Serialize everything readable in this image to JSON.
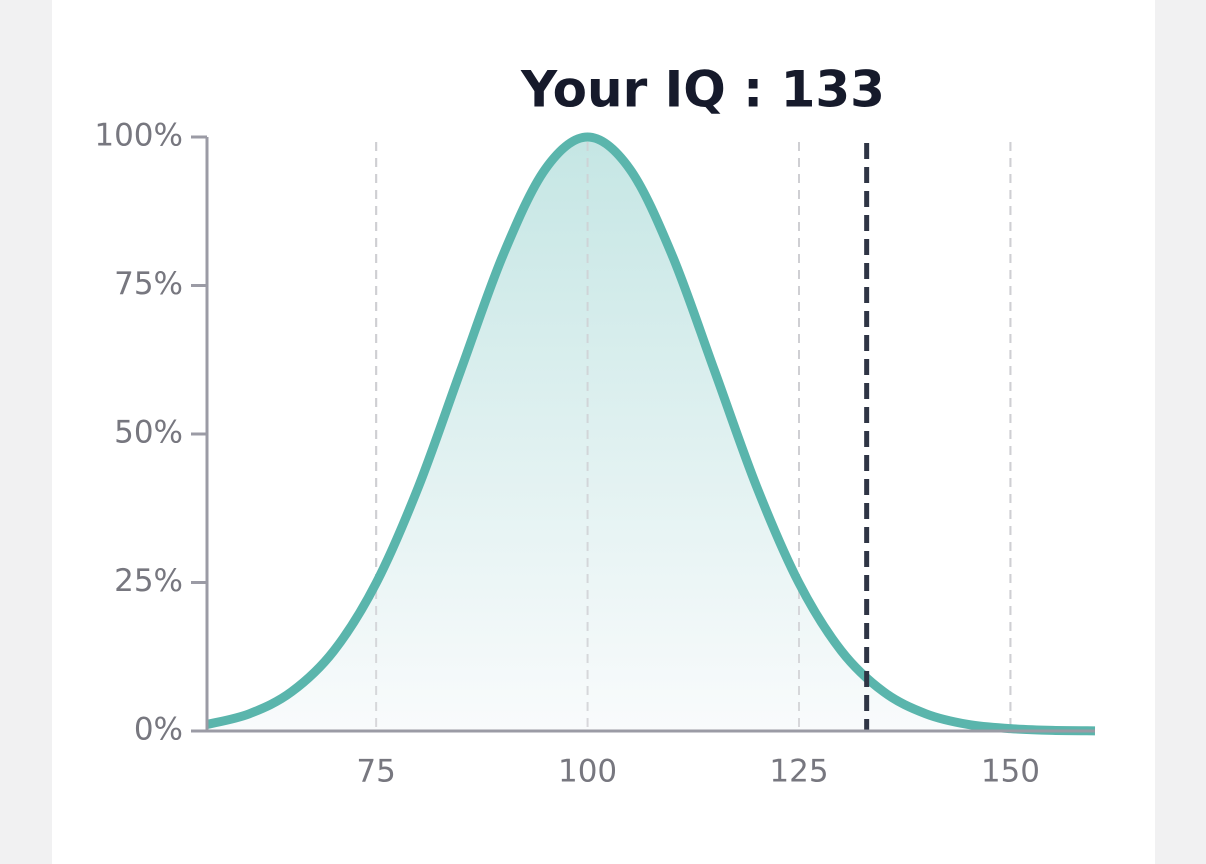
{
  "chart_data": {
    "type": "line",
    "title": "Your IQ : 133",
    "x": [
      55,
      60,
      65,
      70,
      75,
      80,
      85,
      90,
      95,
      100,
      105,
      110,
      115,
      120,
      125,
      130,
      135,
      140,
      145,
      150,
      155,
      160
    ],
    "series": [
      {
        "color": "#5ab5ac",
        "values": [
          1.1,
          2.9,
          6.6,
          13.5,
          24.9,
          41.1,
          60.7,
          80.1,
          94.6,
          100,
          94.6,
          80.1,
          60.7,
          41.1,
          24.9,
          13.5,
          6.6,
          2.9,
          1.1,
          0.4,
          0.1,
          0.03
        ]
      }
    ],
    "marker_x": 133,
    "marker_color": "#2f3545",
    "xlim": [
      55,
      160
    ],
    "ylim": [
      0,
      100
    ],
    "xticks": [
      75,
      100,
      125,
      150
    ],
    "yticks": [
      {
        "value": 0,
        "label": "0%"
      },
      {
        "value": 25,
        "label": "25%"
      },
      {
        "value": 50,
        "label": "50%"
      },
      {
        "value": 75,
        "label": "75%"
      },
      {
        "value": 100,
        "label": "100%"
      }
    ],
    "grid": true
  }
}
